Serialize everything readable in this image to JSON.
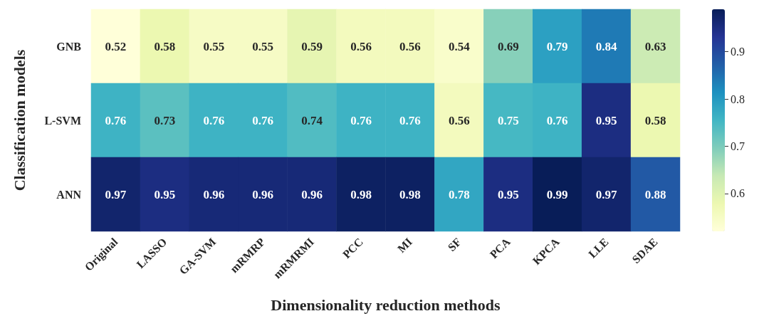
{
  "chart_data": {
    "type": "heatmap",
    "xlabel": "Dimensionality reduction methods",
    "ylabel": "Classification models",
    "categories": [
      "Original",
      "LASSO",
      "GA-SVM",
      "mRMRP",
      "mRMRMI",
      "PCC",
      "MI",
      "SF",
      "PCA",
      "KPCA",
      "LLE",
      "SDAE"
    ],
    "y_categories": [
      "GNB",
      "L-SVM",
      "ANN"
    ],
    "cells": [
      [
        0.52,
        0.58,
        0.55,
        0.55,
        0.59,
        0.56,
        0.56,
        0.54,
        0.69,
        0.79,
        0.84,
        0.63
      ],
      [
        0.76,
        0.73,
        0.76,
        0.76,
        0.74,
        0.76,
        0.76,
        0.56,
        0.75,
        0.76,
        0.95,
        0.58
      ],
      [
        0.97,
        0.95,
        0.96,
        0.96,
        0.96,
        0.98,
        0.98,
        0.78,
        0.95,
        0.99,
        0.97,
        0.88
      ]
    ],
    "clim": [
      0.52,
      0.99
    ],
    "cticks": [
      0.6,
      0.7,
      0.8,
      0.9
    ],
    "data_labels": true
  }
}
